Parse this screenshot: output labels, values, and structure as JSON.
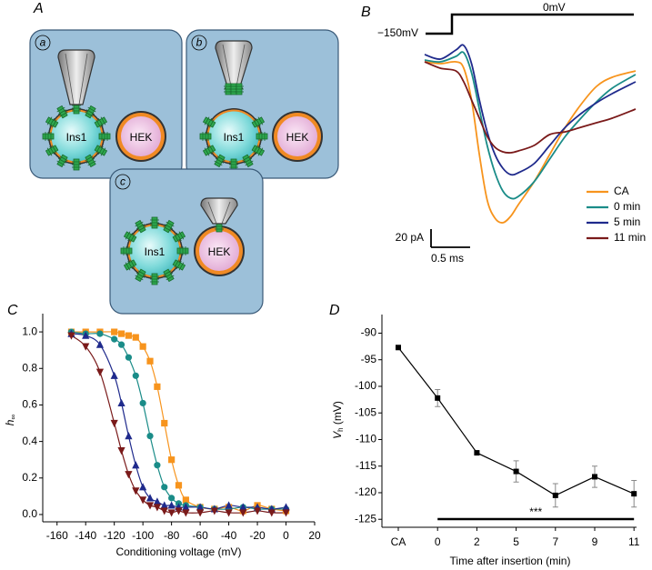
{
  "diagram": {
    "panel": "A",
    "boxes": [
      {
        "tag": "a",
        "cell1": "Ins1",
        "cell2": "HEK"
      },
      {
        "tag": "b",
        "cell1": "Ins1",
        "cell2": "HEK"
      },
      {
        "tag": "c",
        "cell1": "Ins1",
        "cell2": "HEK"
      }
    ]
  },
  "chart_data": [
    {
      "panel": "B",
      "type": "trace",
      "protocol": {
        "holding": "−150mV",
        "step": "0mV"
      },
      "x": [
        0,
        0.2,
        0.4,
        0.5,
        0.6,
        0.7,
        0.8,
        0.9,
        1.0,
        1.1,
        1.2,
        1.4,
        1.6,
        1.8,
        2.0,
        2.2,
        2.4,
        2.7
      ],
      "xlim": [
        0,
        2.7
      ],
      "ylim": [
        -185,
        30
      ],
      "scalebar": {
        "x": {
          "value": 0.5,
          "label": "0.5 ms"
        },
        "y": {
          "value": 20,
          "label": "20 pA"
        }
      },
      "series": [
        {
          "name": "CA",
          "color": "#f7941d",
          "values": [
            0,
            -2,
            0,
            -7,
            -42,
            -102,
            -152,
            -172,
            -177,
            -170,
            -157,
            -132,
            -102,
            -72,
            -47,
            -27,
            -17,
            -10
          ]
        },
        {
          "name": "0 min",
          "color": "#1a8c88",
          "values": [
            2,
            0,
            6,
            10,
            -12,
            -52,
            -92,
            -122,
            -142,
            -150,
            -148,
            -132,
            -107,
            -82,
            -62,
            -44,
            -29,
            -14
          ]
        },
        {
          "name": "5 min",
          "color": "#1f2a8c",
          "values": [
            8,
            3,
            13,
            18,
            -2,
            -42,
            -77,
            -102,
            -117,
            -124,
            -122,
            -112,
            -92,
            -72,
            -57,
            -45,
            -35,
            -22
          ]
        },
        {
          "name": "11 min",
          "color": "#7a1a1a",
          "values": [
            0,
            -7,
            -10,
            -22,
            -42,
            -62,
            -82,
            -94,
            -99,
            -100,
            -98,
            -92,
            -80,
            -77,
            -72,
            -67,
            -62,
            -52
          ]
        }
      ]
    },
    {
      "panel": "C",
      "type": "scatter",
      "xlabel": "Conditioning voltage (mV)",
      "ylabel": {
        "symbol": "h",
        "subscript": "∞"
      },
      "x": [
        -150,
        -140,
        -130,
        -120,
        -115,
        -110,
        -105,
        -100,
        -95,
        -90,
        -85,
        -80,
        -75,
        -70,
        -60,
        -50,
        -40,
        -30,
        -20,
        -10,
        0
      ],
      "xlim": [
        -170,
        20
      ],
      "ylim": [
        -0.04,
        1.1
      ],
      "xticks": [
        -160,
        -140,
        -120,
        -100,
        -80,
        -60,
        -40,
        -20,
        0,
        20
      ],
      "yticks": [
        {
          "value": 0,
          "label": "0.0"
        },
        0.2,
        0.4,
        0.6,
        0.8,
        {
          "value": 1,
          "label": "1.0"
        }
      ],
      "series": [
        {
          "color": "#f7941d",
          "marker": "square",
          "values": [
            1.0,
            1.0,
            1.0,
            1.0,
            0.99,
            0.98,
            0.97,
            0.92,
            0.84,
            0.7,
            0.5,
            0.3,
            0.16,
            0.08,
            0.04,
            0.03,
            0.04,
            0.02,
            0.05,
            0.03,
            0.02
          ]
        },
        {
          "color": "#1a8c88",
          "marker": "circle",
          "values": [
            1.0,
            0.99,
            0.99,
            0.96,
            0.93,
            0.86,
            0.76,
            0.61,
            0.43,
            0.27,
            0.15,
            0.09,
            0.06,
            0.05,
            0.04,
            0.03,
            0.03,
            0.04,
            0.03,
            0.03,
            0.03
          ]
        },
        {
          "color": "#1f2a8c",
          "marker": "triangle-up",
          "values": [
            0.99,
            0.98,
            0.93,
            0.76,
            0.61,
            0.43,
            0.27,
            0.15,
            0.09,
            0.07,
            0.05,
            0.05,
            0.04,
            0.04,
            0.04,
            0.03,
            0.05,
            0.04,
            0.04,
            0.03,
            0.04
          ]
        },
        {
          "color": "#7a1a1a",
          "marker": "triangle-down",
          "values": [
            0.98,
            0.92,
            0.78,
            0.5,
            0.35,
            0.22,
            0.13,
            0.08,
            0.05,
            0.04,
            0.02,
            0.01,
            0.02,
            0.01,
            0.01,
            0.02,
            0.01,
            0.01,
            0.02,
            0.01,
            0.01
          ]
        }
      ]
    },
    {
      "panel": "D",
      "type": "line",
      "xlabel": "Time after insertion (min)",
      "ylabel": {
        "symbol": "V",
        "subscript": "h",
        "unit": " (mV)"
      },
      "categories": [
        "CA",
        "0",
        "2",
        "5",
        "7",
        "9",
        "11"
      ],
      "values": [
        -92.7,
        -102.2,
        -112.5,
        -116.0,
        -120.5,
        -117.0,
        -120.2
      ],
      "errors": [
        null,
        1.6,
        null,
        2.0,
        2.2,
        2.0,
        2.5
      ],
      "color": "#000000",
      "ylim": [
        -126.5,
        -86.5
      ],
      "yticks": [
        -90,
        -95,
        -100,
        -105,
        -110,
        -115,
        -120,
        -125
      ],
      "annotation": "***"
    }
  ]
}
